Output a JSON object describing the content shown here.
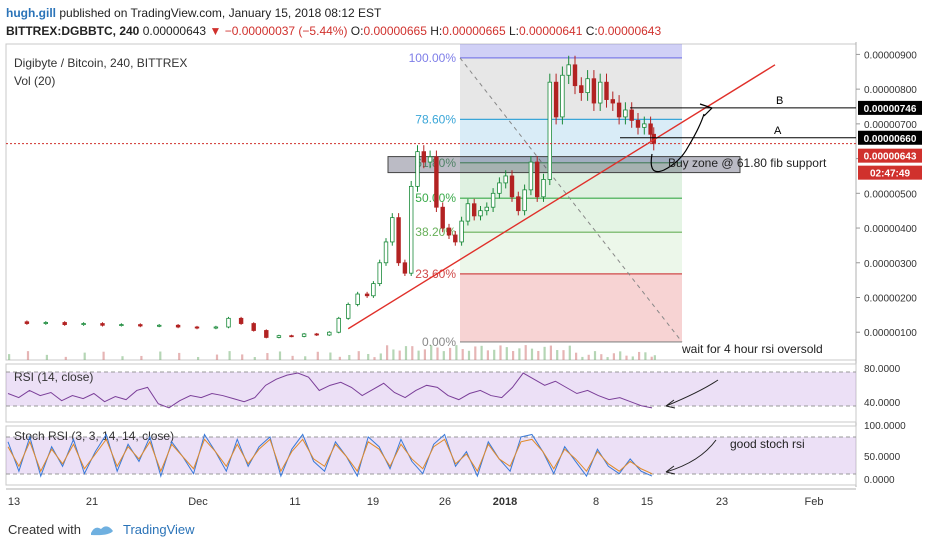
{
  "header": {
    "user": "hugh.gill",
    "published": "published on TradingView.com, January 15, 2018 08:12 EST",
    "symbol": "BITTREX:DGBBTC, 240",
    "last": "0.00000643",
    "change": "−0.00000037 (−5.44%)",
    "ohlc": {
      "o_label": "O:",
      "o": "0.00000665",
      "h_label": "H:",
      "h": "0.00000665",
      "l_label": "L:",
      "l": "0.00000641",
      "c_label": "C:",
      "c": "0.00000643"
    }
  },
  "chart_data": {
    "type": "candlestick",
    "title": "Digibyte / Bitcoin, 240, BITTREX",
    "volume_label": "Vol (20)",
    "x_ticks": [
      "13",
      "21",
      "Dec",
      "11",
      "19",
      "26",
      "2018",
      "8",
      "15",
      "23",
      "Feb"
    ],
    "y_ticks": [
      "0.00000900",
      "0.00000800",
      "0.00000700",
      "0.00000600",
      "0.00000500",
      "0.00000400",
      "0.00000300",
      "0.00000200",
      "0.00000100"
    ],
    "ylim": [
      2e-07,
      9.3e-06
    ],
    "price_path": [
      [
        0,
        1.3
      ],
      [
        6,
        1.25
      ],
      [
        12,
        1.28
      ],
      [
        18,
        1.22
      ],
      [
        24,
        1.25
      ],
      [
        30,
        1.2
      ],
      [
        36,
        1.22
      ],
      [
        42,
        1.18
      ],
      [
        48,
        1.2
      ],
      [
        54,
        1.15
      ],
      [
        60,
        1.12
      ],
      [
        66,
        1.15
      ],
      [
        70,
        1.4
      ],
      [
        74,
        1.25
      ],
      [
        78,
        1.05
      ],
      [
        82,
        0.85
      ],
      [
        86,
        0.9
      ],
      [
        90,
        0.88
      ],
      [
        94,
        0.95
      ],
      [
        98,
        0.92
      ],
      [
        102,
        1.0
      ],
      [
        105,
        1.4
      ],
      [
        108,
        1.8
      ],
      [
        111,
        2.1
      ],
      [
        114,
        2.05
      ],
      [
        116,
        2.4
      ],
      [
        118,
        3.0
      ],
      [
        120,
        3.6
      ],
      [
        122,
        4.3
      ],
      [
        124,
        3.0
      ],
      [
        126,
        2.7
      ],
      [
        128,
        5.2
      ],
      [
        130,
        6.2
      ],
      [
        132,
        5.9
      ],
      [
        134,
        6.05
      ],
      [
        136,
        4.6
      ],
      [
        138,
        4.0
      ],
      [
        140,
        3.8
      ],
      [
        142,
        3.6
      ],
      [
        144,
        4.2
      ],
      [
        146,
        4.7
      ],
      [
        148,
        4.35
      ],
      [
        150,
        4.5
      ],
      [
        152,
        4.6
      ],
      [
        154,
        5.0
      ],
      [
        156,
        5.3
      ],
      [
        158,
        5.5
      ],
      [
        160,
        4.9
      ],
      [
        162,
        4.5
      ],
      [
        164,
        5.1
      ],
      [
        166,
        5.9
      ],
      [
        168,
        4.9
      ],
      [
        170,
        5.4
      ],
      [
        172,
        8.2
      ],
      [
        174,
        7.2
      ],
      [
        176,
        8.4
      ],
      [
        178,
        8.7
      ],
      [
        180,
        8.1
      ],
      [
        182,
        7.9
      ],
      [
        184,
        8.3
      ],
      [
        186,
        7.6
      ],
      [
        188,
        8.2
      ],
      [
        190,
        7.7
      ],
      [
        192,
        7.6
      ],
      [
        194,
        7.2
      ],
      [
        196,
        7.4
      ],
      [
        198,
        7.1
      ],
      [
        200,
        6.9
      ],
      [
        202,
        7.0
      ],
      [
        204,
        6.7
      ],
      [
        205,
        6.43
      ]
    ],
    "candle_color_up": "#1a8a3a",
    "candle_color_down": "#b22222",
    "fib_levels": [
      {
        "label": "100.00%",
        "price": 8.9e-06,
        "color": "#7e7ee8"
      },
      {
        "label": "78.60%",
        "price": 7.13e-06,
        "color": "#3aa6d8"
      },
      {
        "label": "61.80%",
        "price": 5.88e-06,
        "color": "#5aa86e"
      },
      {
        "label": "50.00%",
        "price": 4.86e-06,
        "color": "#3aaa4a"
      },
      {
        "label": "38.20%",
        "price": 3.88e-06,
        "color": "#68b05a"
      },
      {
        "label": "23.60%",
        "price": 2.68e-06,
        "color": "#d04a4a"
      },
      {
        "label": "0.00%",
        "price": 7.2e-07,
        "color": "#888888"
      }
    ],
    "levels": [
      {
        "label": "B",
        "price": 7.46e-06
      },
      {
        "label": "A",
        "price": 6.6e-06
      }
    ],
    "price_tags": [
      {
        "text": "0.00000746",
        "bg": "#000000",
        "fg": "#ffffff"
      },
      {
        "text": "0.00000660",
        "bg": "#000000",
        "fg": "#ffffff"
      },
      {
        "text": "0.00000643",
        "bg": "#d0312d",
        "fg": "#ffffff"
      },
      {
        "text": "02:47:49",
        "bg": "#d0312d",
        "fg": "#ffffff"
      }
    ],
    "annotations": {
      "buy_zone": "Buy zone @ 61.80 fib support",
      "rsi_note": "wait for 4 hour rsi oversold",
      "stoch_note": "good stoch rsi"
    },
    "rsi": {
      "label": "RSI (14, close)",
      "ticks": [
        "80.0000",
        "40.0000"
      ],
      "values": [
        52,
        48,
        55,
        50,
        53,
        45,
        50,
        47,
        52,
        44,
        49,
        46,
        55,
        58,
        42,
        38,
        45,
        50,
        48,
        52,
        50,
        47,
        44,
        48,
        60,
        66,
        70,
        72,
        68,
        55,
        60,
        63,
        58,
        50,
        56,
        62,
        53,
        48,
        55,
        60,
        58,
        50,
        46,
        52,
        55,
        50,
        48,
        58,
        72,
        66,
        60,
        64,
        58,
        52,
        55,
        50,
        46,
        48,
        44,
        40,
        38
      ]
    },
    "stoch_rsi": {
      "label": "Stoch RSI (3, 3, 14, 14, close)",
      "ticks": [
        "100.0000",
        "50.0000",
        "0.0000"
      ],
      "k": [
        80,
        20,
        90,
        10,
        70,
        30,
        85,
        15,
        60,
        95,
        20,
        75,
        40,
        90,
        10,
        80,
        50,
        15,
        95,
        60,
        20,
        85,
        30,
        70,
        90,
        10,
        65,
        95,
        40,
        20,
        80,
        50,
        10,
        90,
        70,
        25,
        85,
        40,
        15,
        75,
        95,
        30,
        60,
        10,
        80,
        45,
        20,
        90,
        95,
        60,
        15,
        70,
        40,
        10,
        65,
        30,
        15,
        45,
        20,
        10
      ],
      "d": [
        70,
        30,
        80,
        20,
        65,
        35,
        75,
        25,
        55,
        85,
        30,
        70,
        45,
        80,
        20,
        75,
        50,
        25,
        85,
        60,
        30,
        75,
        35,
        65,
        85,
        20,
        60,
        85,
        45,
        30,
        75,
        50,
        20,
        80,
        65,
        30,
        75,
        45,
        25,
        70,
        85,
        35,
        55,
        20,
        75,
        45,
        30,
        80,
        85,
        60,
        25,
        65,
        45,
        20,
        60,
        35,
        20,
        40,
        25,
        15
      ]
    }
  },
  "footer": {
    "created_with": "Created with",
    "brand": "TradingView"
  }
}
